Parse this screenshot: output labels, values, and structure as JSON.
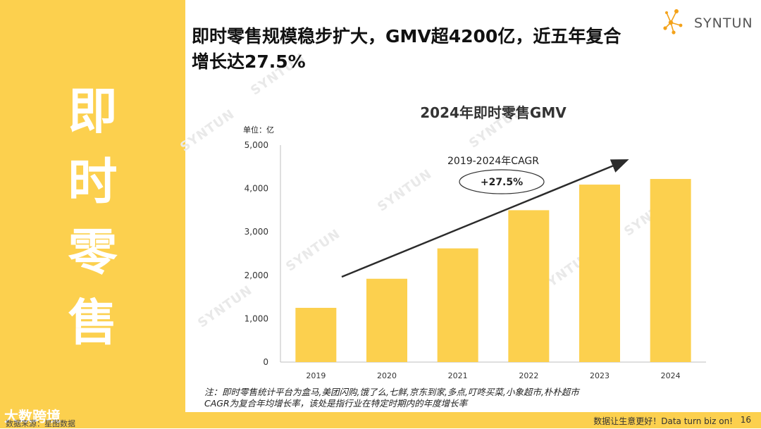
{
  "sidebar": {
    "title_chars": [
      "即",
      "时",
      "零",
      "售"
    ]
  },
  "headline": {
    "line1": "即时零售规模稳步扩大，GMV超4200亿，近五年复合",
    "line2": "增长达27.5%"
  },
  "logo": {
    "text": "SYNTUN"
  },
  "watermark": "SYNTUN",
  "colors": {
    "accent": "#fcd04e",
    "bar": "#fcd04e",
    "arrow": "#2b2b2b"
  },
  "chart_data": {
    "type": "bar",
    "title": "2024年即时零售GMV",
    "unit_label": "单位：亿",
    "categories": [
      "2019",
      "2020",
      "2021",
      "2022",
      "2023",
      "2024"
    ],
    "values": [
      1250,
      1920,
      2620,
      3500,
      4090,
      4220
    ],
    "ylim": [
      0,
      5000
    ],
    "yticks": [
      0,
      1000,
      2000,
      3000,
      4000,
      5000
    ],
    "ytick_labels": [
      "0",
      "1,000",
      "2,000",
      "3,000",
      "4,000",
      "5,000"
    ],
    "annotation": {
      "label": "2019-2024年CAGR",
      "value": "+27.5%"
    }
  },
  "notes": {
    "line1": "注：即时零售统计平台为盒马,美团闪购,饿了么,七鲜,京东到家,多点,叮咚买菜,小象超市,朴朴超市",
    "line2": "CAGR为复合年均增长率，该处是指行业在特定时期内的年度增长率"
  },
  "footer": {
    "slogan": "数据让生意更好！Data turn biz on!",
    "page": "16",
    "brand": "大数跨境",
    "source": "数据来源：星图数据"
  }
}
